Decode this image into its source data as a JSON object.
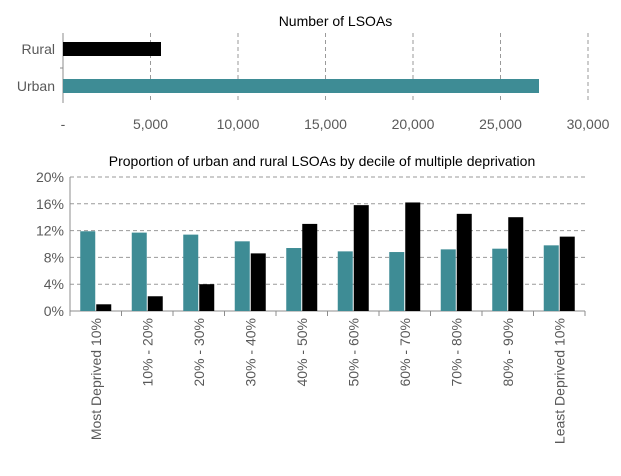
{
  "chart_data": [
    {
      "type": "bar",
      "orientation": "horizontal",
      "title": "Number of LSOAs",
      "categories": [
        "Rural",
        "Urban"
      ],
      "values": [
        5600,
        27200
      ],
      "colors": [
        "#000000",
        "#3e8c95"
      ],
      "xlim": [
        0,
        30000
      ],
      "x_ticks": [
        "-",
        "5,000",
        "10,000",
        "15,000",
        "20,000",
        "25,000",
        "30,000"
      ],
      "x_tick_values": [
        0,
        5000,
        10000,
        15000,
        20000,
        25000,
        30000
      ],
      "grid": "vertical dashed"
    },
    {
      "type": "bar",
      "title": "Proportion of urban and rural LSOAs by decile of multiple deprivation",
      "categories": [
        "Most Deprived 10%",
        "10% - 20%",
        "20% - 30%",
        "30% - 40%",
        "40% - 50%",
        "50% - 60%",
        "60% - 70%",
        "70% - 80%",
        "80% - 90%",
        "Least Deprived 10%"
      ],
      "series": [
        {
          "values": [
            11.9,
            11.7,
            11.4,
            10.4,
            9.4,
            8.9,
            8.8,
            9.2,
            9.3,
            9.8
          ],
          "color": "#3e8c95"
        },
        {
          "values": [
            1.0,
            2.2,
            4.0,
            8.6,
            13.0,
            15.8,
            16.2,
            14.5,
            14.0,
            11.1
          ],
          "color": "#000000"
        }
      ],
      "ylim": [
        0,
        20
      ],
      "y_ticks": [
        "0%",
        "4%",
        "8%",
        "12%",
        "16%",
        "20%"
      ],
      "y_tick_values": [
        0,
        4,
        8,
        12,
        16,
        20
      ],
      "grid": "horizontal dashed"
    }
  ]
}
